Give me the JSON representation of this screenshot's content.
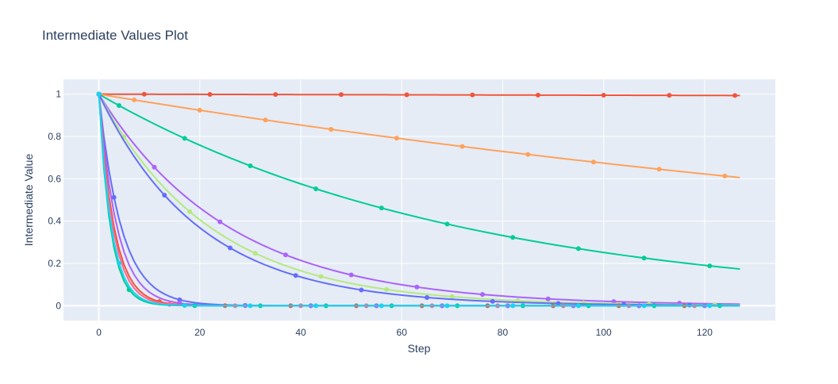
{
  "chart_data": {
    "type": "line",
    "title": "Intermediate Values Plot",
    "xlabel": "Step",
    "ylabel": "Intermediate Value",
    "xlim": [
      -7,
      134
    ],
    "ylim": [
      -0.07,
      1.07
    ],
    "x_ticks": [
      0,
      20,
      40,
      60,
      80,
      100,
      120
    ],
    "y_ticks": [
      0,
      0.2,
      0.4,
      0.6,
      0.8,
      1
    ],
    "y_tick_labels": [
      "0",
      "0.2",
      "0.4",
      "0.6",
      "0.8",
      "1"
    ],
    "grid": true,
    "legend": "none",
    "x_max_step": 127,
    "series": [
      {
        "color": "#EF553B",
        "decay_per_step": 0.99995,
        "marker_start": 9,
        "marker_every": 13
      },
      {
        "color": "#FFA15A",
        "decay_per_step": 0.99606,
        "marker_start": 7,
        "marker_every": 13
      },
      {
        "color": "#00CC96",
        "decay_per_step": 0.9863,
        "marker_start": 4,
        "marker_every": 13
      },
      {
        "color": "#AB63FA",
        "decay_per_step": 0.9622,
        "marker_start": 11,
        "marker_every": 13
      },
      {
        "color": "#B6E880",
        "decay_per_step": 0.956,
        "marker_start": 5,
        "marker_every": 13
      },
      {
        "color": "#636EFA",
        "decay_per_step": 0.9513,
        "marker_start": 13,
        "marker_every": 13
      },
      {
        "color": "#636EFA",
        "decay_per_step": 0.8,
        "marker_start": 3,
        "marker_every": 13
      },
      {
        "color": "#AB63FA",
        "decay_per_step": 0.76,
        "marker_start": 16,
        "marker_every": 13
      },
      {
        "color": "#EF553B",
        "decay_per_step": 0.72,
        "marker_start": 12,
        "marker_every": 13
      },
      {
        "color": "#FF6692",
        "decay_per_step": 0.7,
        "marker_start": 14,
        "marker_every": 13
      },
      {
        "color": "#00CC96",
        "decay_per_step": 0.65,
        "marker_start": 6,
        "marker_every": 13
      },
      {
        "color": "#19D3F3",
        "decay_per_step": 0.67,
        "marker_start": 4,
        "marker_every": 13
      }
    ]
  }
}
